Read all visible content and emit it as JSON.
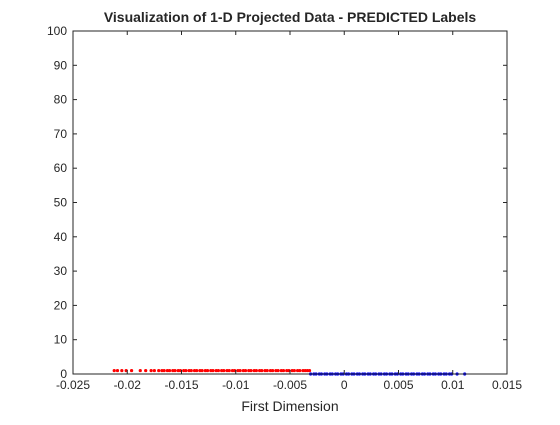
{
  "chart_data": {
    "type": "scatter",
    "title": "Visualization of 1-D Projected Data - PREDICTED Labels",
    "xlabel": "First Dimension",
    "ylabel": "",
    "xlim": [
      -0.025,
      0.015
    ],
    "ylim": [
      0,
      100
    ],
    "x_ticks": [
      -0.025,
      -0.02,
      -0.015,
      -0.01,
      -0.005,
      0,
      0.005,
      0.01,
      0.015
    ],
    "x_tick_labels": [
      "-0.025",
      "-0.02",
      "-0.015",
      "-0.01",
      "-0.005",
      "0",
      "0.005",
      "0.01",
      "0.015"
    ],
    "y_ticks": [
      0,
      10,
      20,
      30,
      40,
      50,
      60,
      70,
      80,
      90,
      100
    ],
    "y_tick_labels": [
      "0",
      "10",
      "20",
      "30",
      "40",
      "50",
      "60",
      "70",
      "80",
      "90",
      "100"
    ],
    "grid": false,
    "legend": "none",
    "series": [
      {
        "color": "#ff0000",
        "marker": "point",
        "x": [
          -0.0212,
          -0.0209,
          -0.0205,
          -0.0201,
          -0.0196,
          -0.0188,
          -0.0183,
          -0.0178,
          -0.0175,
          -0.0171,
          -0.0168,
          -0.0166,
          -0.0163,
          -0.0161,
          -0.0158,
          -0.0156,
          -0.0153,
          -0.0151,
          -0.0148,
          -0.0146,
          -0.0143,
          -0.0141,
          -0.0138,
          -0.0136,
          -0.0133,
          -0.0131,
          -0.0128,
          -0.0126,
          -0.0123,
          -0.0121,
          -0.0118,
          -0.0116,
          -0.0113,
          -0.0111,
          -0.0108,
          -0.0106,
          -0.0103,
          -0.0101,
          -0.0098,
          -0.0096,
          -0.0093,
          -0.0091,
          -0.0088,
          -0.0086,
          -0.0083,
          -0.0081,
          -0.0078,
          -0.0076,
          -0.0073,
          -0.0071,
          -0.0068,
          -0.0066,
          -0.0063,
          -0.0061,
          -0.0058,
          -0.0056,
          -0.0053,
          -0.0051,
          -0.0048,
          -0.0046,
          -0.0043,
          -0.0041,
          -0.0038,
          -0.0036,
          -0.0034,
          -0.0032
        ],
        "y": [
          1,
          1,
          1,
          1,
          1,
          1,
          1,
          1,
          1,
          1,
          1,
          1,
          1,
          1,
          1,
          1,
          1,
          1,
          1,
          1,
          1,
          1,
          1,
          1,
          1,
          1,
          1,
          1,
          1,
          1,
          1,
          1,
          1,
          1,
          1,
          1,
          1,
          1,
          1,
          1,
          1,
          1,
          1,
          1,
          1,
          1,
          1,
          1,
          1,
          1,
          1,
          1,
          1,
          1,
          1,
          1,
          1,
          1,
          1,
          1,
          1,
          1,
          1,
          1,
          1,
          1
        ]
      },
      {
        "color": "#0000ff",
        "marker": "point",
        "x": [
          -0.0031,
          -0.0028,
          -0.0026,
          -0.0023,
          -0.0021,
          -0.0018,
          -0.0016,
          -0.0013,
          -0.0011,
          -0.0008,
          -0.0006,
          -0.0003,
          -0.0001,
          0.0002,
          0.0004,
          0.0007,
          0.0009,
          0.0012,
          0.0014,
          0.0017,
          0.0019,
          0.0022,
          0.0024,
          0.0027,
          0.0029,
          0.0032,
          0.0034,
          0.0037,
          0.0039,
          0.0042,
          0.0044,
          0.0047,
          0.0049,
          0.0052,
          0.0054,
          0.0057,
          0.0059,
          0.0062,
          0.0064,
          0.0067,
          0.0069,
          0.0072,
          0.0074,
          0.0077,
          0.0079,
          0.0082,
          0.0084,
          0.0087,
          0.0089,
          0.0092,
          0.0094,
          0.0097,
          0.0099,
          0.0104,
          0.0111
        ],
        "y": [
          0,
          0,
          0,
          0,
          0,
          0,
          0,
          0,
          0,
          0,
          0,
          0,
          0,
          0,
          0,
          0,
          0,
          0,
          0,
          0,
          0,
          0,
          0,
          0,
          0,
          0,
          0,
          0,
          0,
          0,
          0,
          0,
          0,
          0,
          0,
          0,
          0,
          0,
          0,
          0,
          0,
          0,
          0,
          0,
          0,
          0,
          0,
          0,
          0,
          0,
          0,
          0,
          0,
          0,
          0
        ]
      }
    ]
  }
}
